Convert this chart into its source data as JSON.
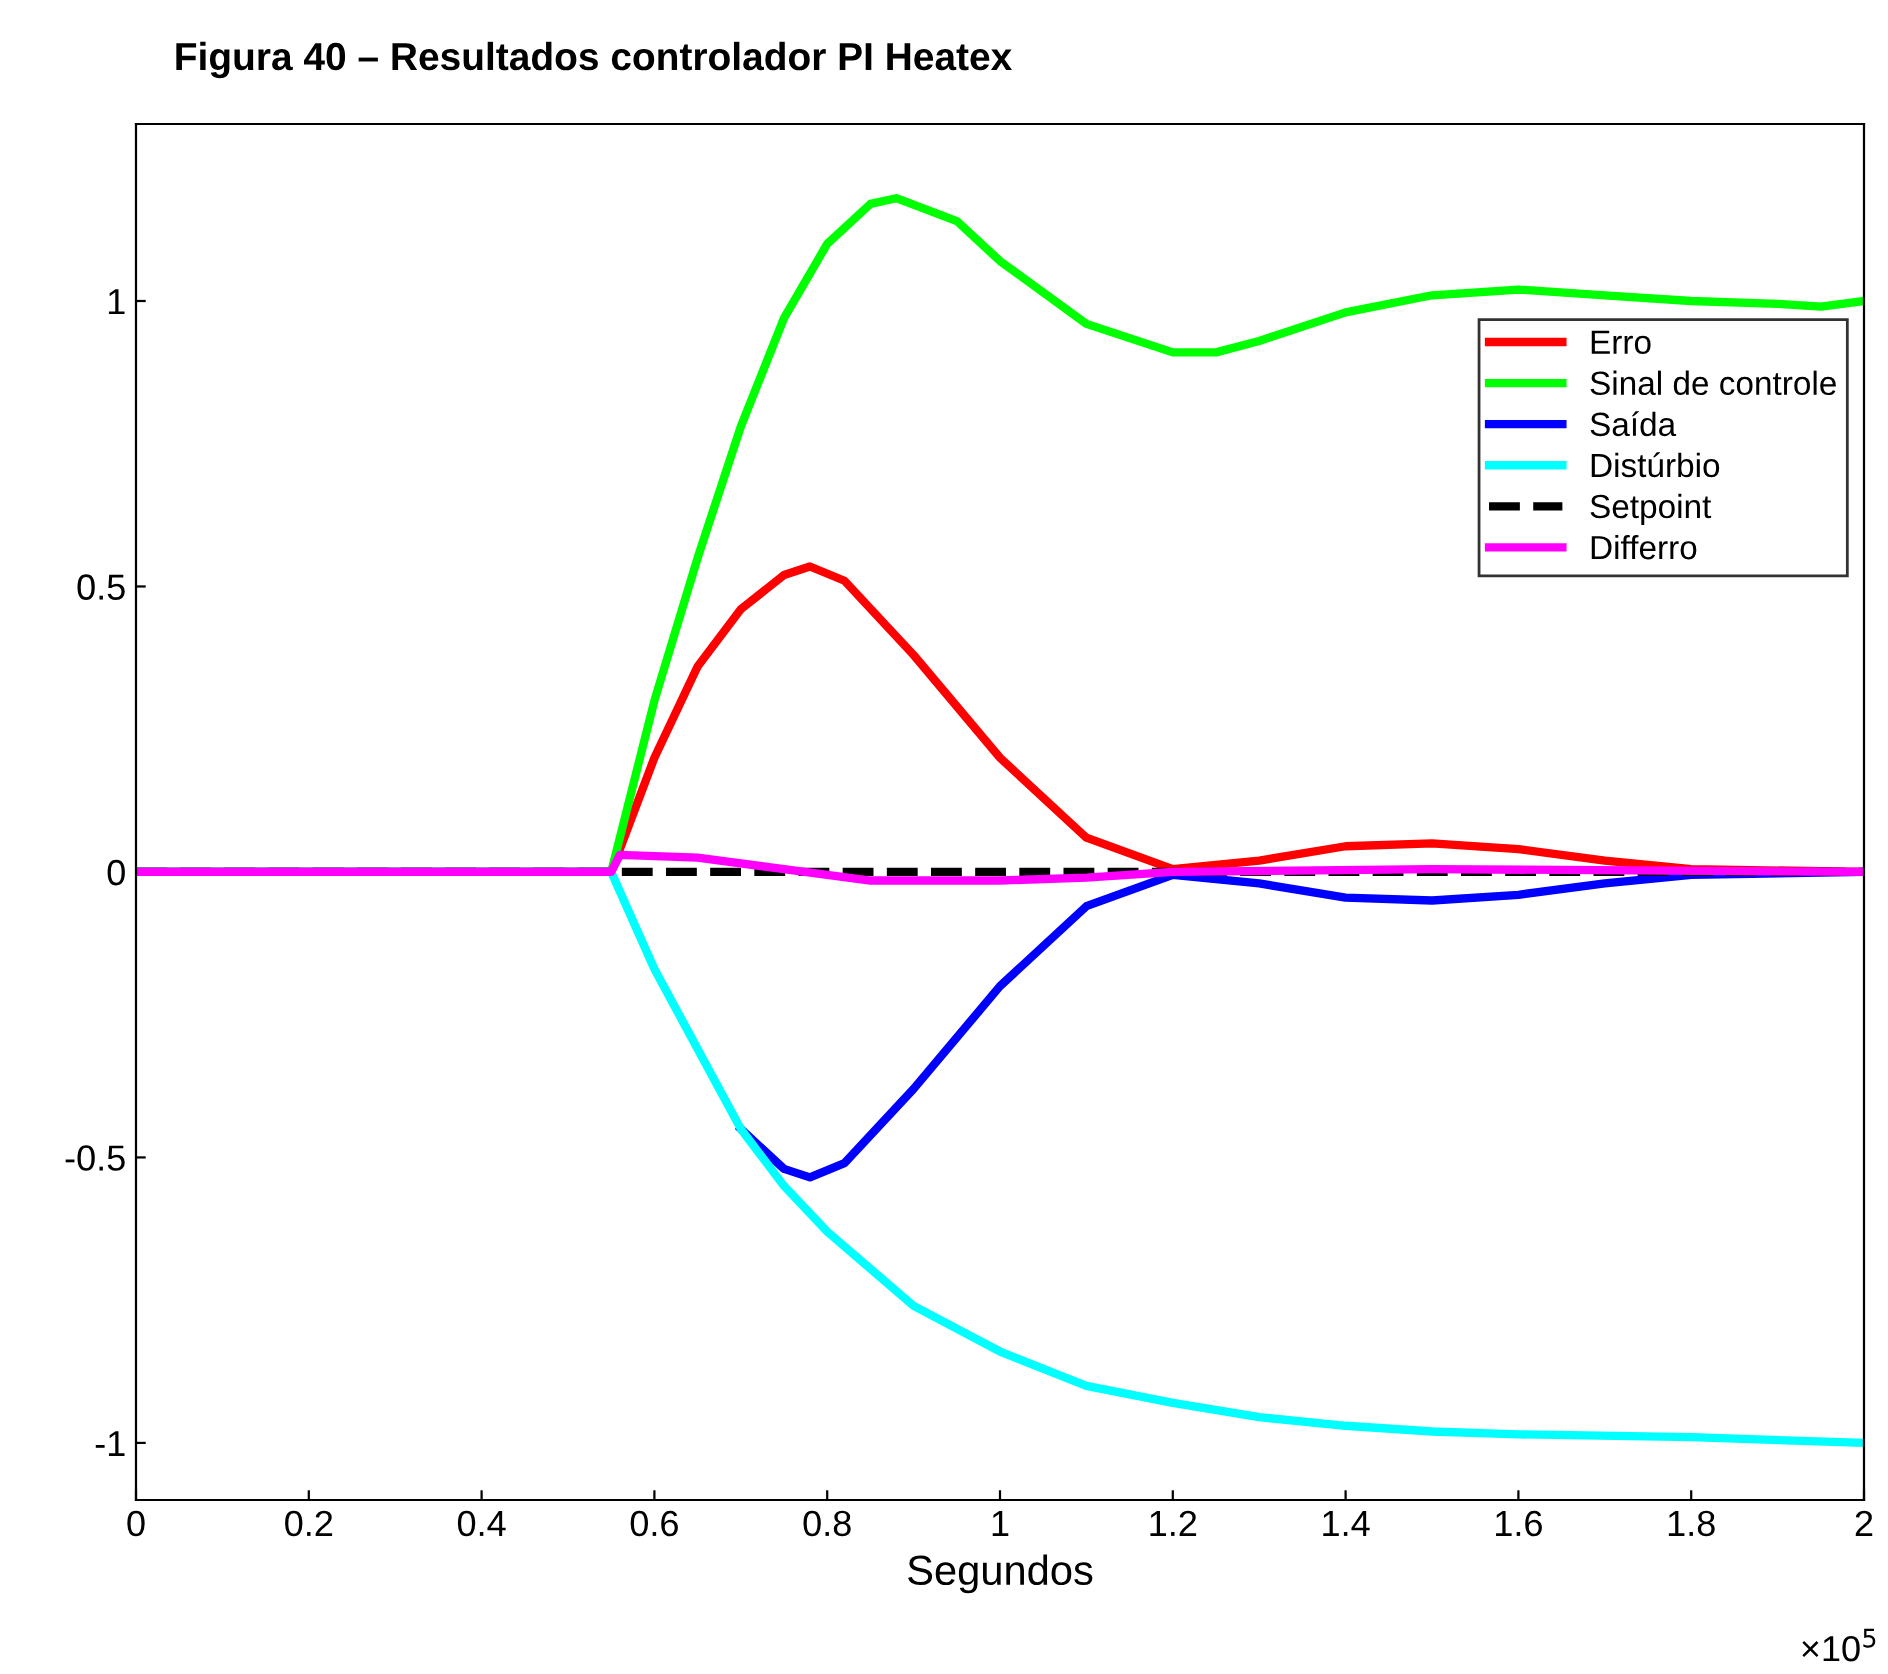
{
  "chart_data": {
    "type": "line",
    "title": "Figura 40 – Resultados controlador PI Heatex",
    "xlabel": "Segundos",
    "annotations": [
      "×10$^{5}$"
    ],
    "xlim": [
      0,
      2
    ],
    "xticks": [
      0,
      0.2,
      0.4,
      0.6,
      0.8,
      1,
      1.2,
      1.4,
      1.6,
      1.8,
      2
    ],
    "ylim": [
      -1.1,
      1.31
    ],
    "yticks": [
      -1,
      -0.5,
      0,
      0.5,
      1
    ],
    "grid": false,
    "legend": "top right",
    "marker": "none",
    "series": [
      {
        "name": "Erro",
        "color": "#ff0000",
        "x": [
          0,
          0.55,
          0.6,
          0.65,
          0.7,
          0.75,
          0.78,
          0.82,
          0.9,
          1.0,
          1.1,
          1.2,
          1.3,
          1.4,
          1.5,
          1.6,
          1.7,
          1.8,
          2.0
        ],
        "values": [
          0,
          0,
          0.2,
          0.36,
          0.46,
          0.52,
          0.535,
          0.51,
          0.38,
          0.2,
          0.06,
          0.005,
          0.02,
          0.045,
          0.05,
          0.04,
          0.02,
          0.005,
          0
        ]
      },
      {
        "name": "Sinal de controle",
        "color": "#00ff00",
        "x": [
          0,
          0.55,
          0.6,
          0.65,
          0.7,
          0.75,
          0.8,
          0.85,
          0.88,
          0.95,
          1.0,
          1.1,
          1.2,
          1.25,
          1.3,
          1.4,
          1.5,
          1.6,
          1.7,
          1.8,
          1.9,
          1.95,
          2.0
        ],
        "values": [
          0,
          0,
          0.3,
          0.55,
          0.78,
          0.97,
          1.1,
          1.17,
          1.18,
          1.14,
          1.07,
          0.96,
          0.91,
          0.91,
          0.93,
          0.98,
          1.01,
          1.02,
          1.01,
          1.0,
          0.995,
          0.99,
          1.0
        ]
      },
      {
        "name": "Saída",
        "color": "#0000ff",
        "x": [
          0,
          0.55,
          0.6,
          0.65,
          0.7,
          0.75,
          0.78,
          0.82,
          0.9,
          1.0,
          1.1,
          1.2,
          1.3,
          1.4,
          1.5,
          1.6,
          1.7,
          1.8,
          2.0
        ],
        "values": [
          0,
          0,
          null,
          null,
          -0.45,
          -0.52,
          -0.535,
          -0.51,
          -0.38,
          -0.2,
          -0.06,
          -0.005,
          -0.02,
          -0.045,
          -0.05,
          -0.04,
          -0.02,
          -0.005,
          0
        ]
      },
      {
        "name": "Distúrbio",
        "color": "#00ffff",
        "x": [
          0,
          0.55,
          0.6,
          0.65,
          0.7,
          0.75,
          0.8,
          0.9,
          1.0,
          1.1,
          1.2,
          1.3,
          1.4,
          1.5,
          1.6,
          1.8,
          2.0
        ],
        "values": [
          0,
          0,
          -0.17,
          -0.31,
          -0.45,
          -0.55,
          -0.63,
          -0.76,
          -0.84,
          -0.9,
          -0.93,
          -0.955,
          -0.97,
          -0.98,
          -0.985,
          -0.99,
          -1.0
        ]
      },
      {
        "name": "Setpoint",
        "color": "#000000",
        "line_style": "dashed",
        "x": [
          0,
          2
        ],
        "values": [
          0,
          0
        ]
      },
      {
        "name": "Differro",
        "color": "#ff00ff",
        "x": [
          0,
          0.55,
          0.56,
          0.65,
          0.75,
          0.85,
          1.0,
          1.1,
          1.2,
          1.5,
          2.0
        ],
        "values": [
          0,
          0,
          0.03,
          0.025,
          0.005,
          -0.015,
          -0.015,
          -0.01,
          0,
          0.005,
          0
        ]
      }
    ]
  }
}
